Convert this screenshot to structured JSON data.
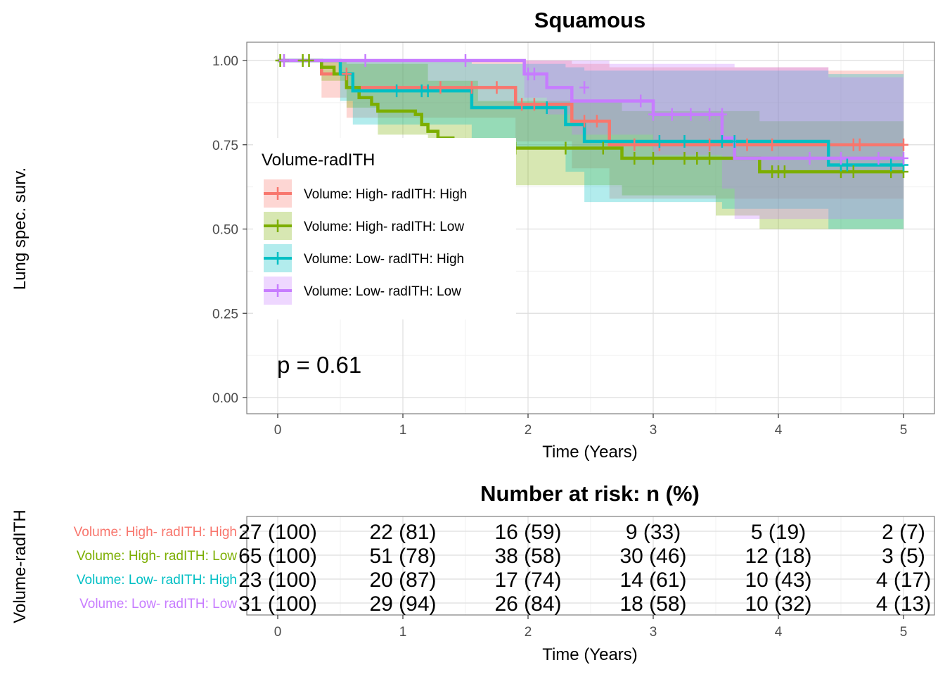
{
  "chart_data": [
    {
      "type": "line",
      "subtype": "kaplan-meier",
      "title": "Squamous",
      "xlabel": "Time (Years)",
      "ylabel": "Lung spec. surv.",
      "xlim": [
        0,
        5
      ],
      "ylim": [
        0,
        1
      ],
      "x_ticks": [
        "0",
        "1",
        "2",
        "3",
        "4",
        "5"
      ],
      "y_ticks": [
        "0.00",
        "0.25",
        "0.50",
        "0.75",
        "1.00"
      ],
      "grid": true,
      "annotation": "p = 0.61",
      "legend": {
        "title": "Volume-radITH",
        "position": "left-middle"
      },
      "series": [
        {
          "name": "Volume: High- radITH: High",
          "color": "#F8766D",
          "steps": [
            [
              0,
              1.0
            ],
            [
              0.35,
              0.96
            ],
            [
              0.55,
              0.92
            ],
            [
              1.9,
              0.87
            ],
            [
              2.35,
              0.82
            ],
            [
              2.65,
              0.75
            ],
            [
              5.0,
              0.75
            ]
          ],
          "ci_lower": [
            [
              0,
              1.0
            ],
            [
              0.35,
              0.89
            ],
            [
              0.55,
              0.83
            ],
            [
              1.9,
              0.76
            ],
            [
              2.35,
              0.68
            ],
            [
              2.65,
              0.59
            ],
            [
              5.0,
              0.59
            ]
          ],
          "ci_upper": [
            [
              0,
              1.0
            ],
            [
              0.35,
              1.0
            ],
            [
              0.55,
              1.0
            ],
            [
              1.9,
              1.0
            ],
            [
              2.35,
              0.99
            ],
            [
              2.65,
              0.98
            ],
            [
              4.4,
              0.97
            ],
            [
              5.0,
              0.97
            ]
          ],
          "censors": [
            [
              0.55,
              0.96
            ],
            [
              1.3,
              0.92
            ],
            [
              1.55,
              0.92
            ],
            [
              1.75,
              0.92
            ],
            [
              1.95,
              0.87
            ],
            [
              2.05,
              0.87
            ],
            [
              2.45,
              0.82
            ],
            [
              2.55,
              0.82
            ],
            [
              2.85,
              0.75
            ],
            [
              3.05,
              0.75
            ],
            [
              3.45,
              0.75
            ],
            [
              3.75,
              0.75
            ],
            [
              3.95,
              0.75
            ],
            [
              4.6,
              0.75
            ],
            [
              4.65,
              0.75
            ],
            [
              5.0,
              0.75
            ]
          ]
        },
        {
          "name": "Volume: High- radITH: Low",
          "color": "#7CAE00",
          "steps": [
            [
              0,
              1.0
            ],
            [
              0.35,
              0.98
            ],
            [
              0.45,
              0.96
            ],
            [
              0.55,
              0.92
            ],
            [
              0.65,
              0.89
            ],
            [
              0.75,
              0.87
            ],
            [
              0.8,
              0.85
            ],
            [
              1.1,
              0.84
            ],
            [
              1.15,
              0.81
            ],
            [
              1.2,
              0.79
            ],
            [
              1.28,
              0.77
            ],
            [
              1.4,
              0.76
            ],
            [
              1.6,
              0.74
            ],
            [
              2.7,
              0.74
            ],
            [
              2.75,
              0.71
            ],
            [
              3.85,
              0.67
            ],
            [
              5.0,
              0.67
            ]
          ],
          "ci_lower": [
            [
              0,
              1.0
            ],
            [
              0.35,
              0.94
            ],
            [
              0.55,
              0.86
            ],
            [
              0.8,
              0.78
            ],
            [
              1.2,
              0.72
            ],
            [
              1.6,
              0.63
            ],
            [
              2.7,
              0.63
            ],
            [
              2.75,
              0.6
            ],
            [
              3.5,
              0.54
            ],
            [
              3.85,
              0.5
            ],
            [
              5.0,
              0.5
            ]
          ],
          "ci_upper": [
            [
              0,
              1.0
            ],
            [
              0.45,
              1.0
            ],
            [
              0.55,
              0.99
            ],
            [
              1.2,
              0.94
            ],
            [
              1.6,
              0.88
            ],
            [
              2.75,
              0.85
            ],
            [
              3.85,
              0.82
            ],
            [
              5.0,
              0.82
            ]
          ],
          "censors": [
            [
              0.02,
              1.0
            ],
            [
              0.05,
              1.0
            ],
            [
              0.2,
              1.0
            ],
            [
              0.25,
              1.0
            ],
            [
              1.7,
              0.74
            ],
            [
              1.9,
              0.74
            ],
            [
              2.3,
              0.74
            ],
            [
              2.6,
              0.74
            ],
            [
              2.85,
              0.71
            ],
            [
              3.0,
              0.71
            ],
            [
              3.25,
              0.71
            ],
            [
              3.35,
              0.71
            ],
            [
              3.45,
              0.71
            ],
            [
              3.95,
              0.67
            ],
            [
              4.0,
              0.67
            ],
            [
              4.05,
              0.67
            ],
            [
              4.5,
              0.67
            ],
            [
              4.6,
              0.67
            ],
            [
              4.9,
              0.67
            ],
            [
              5.0,
              0.67
            ]
          ]
        },
        {
          "name": "Volume: Low- radITH: High",
          "color": "#00BFC4",
          "steps": [
            [
              0,
              1.0
            ],
            [
              0.5,
              0.96
            ],
            [
              0.6,
              0.91
            ],
            [
              1.55,
              0.86
            ],
            [
              2.3,
              0.81
            ],
            [
              2.45,
              0.76
            ],
            [
              4.4,
              0.69
            ],
            [
              5.0,
              0.69
            ]
          ],
          "ci_lower": [
            [
              0,
              1.0
            ],
            [
              0.5,
              0.88
            ],
            [
              0.6,
              0.81
            ],
            [
              1.55,
              0.74
            ],
            [
              2.3,
              0.67
            ],
            [
              2.45,
              0.58
            ],
            [
              3.55,
              0.56
            ],
            [
              4.4,
              0.5
            ],
            [
              5.0,
              0.5
            ]
          ],
          "ci_upper": [
            [
              0,
              1.0
            ],
            [
              0.6,
              1.0
            ],
            [
              1.55,
              0.99
            ],
            [
              2.3,
              0.98
            ],
            [
              2.45,
              0.97
            ],
            [
              4.4,
              0.96
            ],
            [
              5.0,
              0.96
            ]
          ],
          "censors": [
            [
              0.95,
              0.91
            ],
            [
              1.15,
              0.91
            ],
            [
              1.2,
              0.91
            ],
            [
              2.15,
              0.86
            ],
            [
              3.05,
              0.76
            ],
            [
              3.25,
              0.76
            ],
            [
              3.55,
              0.76
            ],
            [
              3.65,
              0.76
            ],
            [
              4.5,
              0.69
            ],
            [
              4.55,
              0.69
            ],
            [
              4.9,
              0.69
            ],
            [
              5.0,
              0.69
            ]
          ]
        },
        {
          "name": "Volume: Low- radITH: Low",
          "color": "#C77CFF",
          "steps": [
            [
              0,
              1.0
            ],
            [
              1.97,
              0.96
            ],
            [
              2.15,
              0.92
            ],
            [
              2.35,
              0.88
            ],
            [
              3.0,
              0.84
            ],
            [
              3.55,
              0.77
            ],
            [
              3.65,
              0.71
            ],
            [
              5.0,
              0.71
            ]
          ],
          "ci_lower": [
            [
              0,
              1.0
            ],
            [
              1.97,
              0.89
            ],
            [
              2.15,
              0.84
            ],
            [
              2.35,
              0.78
            ],
            [
              3.0,
              0.72
            ],
            [
              3.55,
              0.62
            ],
            [
              3.65,
              0.53
            ],
            [
              3.85,
              0.53
            ],
            [
              4.4,
              0.53
            ],
            [
              5.0,
              0.53
            ]
          ],
          "ci_upper": [
            [
              0,
              1.0
            ],
            [
              2.35,
              1.0
            ],
            [
              2.65,
              0.99
            ],
            [
              3.55,
              0.99
            ],
            [
              3.65,
              0.98
            ],
            [
              4.4,
              0.95
            ],
            [
              5.0,
              0.95
            ]
          ],
          "censors": [
            [
              0.05,
              1.0
            ],
            [
              0.7,
              1.0
            ],
            [
              1.5,
              1.0
            ],
            [
              2.0,
              0.96
            ],
            [
              2.05,
              0.96
            ],
            [
              2.45,
              0.92
            ],
            [
              2.9,
              0.88
            ],
            [
              3.0,
              0.84
            ],
            [
              3.15,
              0.84
            ],
            [
              3.3,
              0.84
            ],
            [
              3.45,
              0.84
            ],
            [
              3.55,
              0.84
            ],
            [
              4.25,
              0.71
            ],
            [
              4.5,
              0.71
            ],
            [
              4.8,
              0.71
            ],
            [
              5.0,
              0.71
            ]
          ]
        }
      ]
    },
    {
      "type": "table",
      "title": "Number at risk: n (%)",
      "xlabel": "Time (Years)",
      "ylabel": "Volume-radITH",
      "x_ticks": [
        "0",
        "1",
        "2",
        "3",
        "4",
        "5"
      ],
      "xlim": [
        0,
        5
      ],
      "rows": [
        {
          "name": "Volume: High- radITH: High",
          "color": "#F8766D",
          "cells": [
            "27 (100)",
            "22 (81)",
            "16 (59)",
            "9 (33)",
            "5 (19)",
            "2 (7)"
          ]
        },
        {
          "name": "Volume: High- radITH: Low",
          "color": "#7CAE00",
          "cells": [
            "65 (100)",
            "51 (78)",
            "38 (58)",
            "30 (46)",
            "12 (18)",
            "3 (5)"
          ]
        },
        {
          "name": "Volume: Low- radITH: High",
          "color": "#00BFC4",
          "cells": [
            "23 (100)",
            "20 (87)",
            "17 (74)",
            "14 (61)",
            "10 (43)",
            "4 (17)"
          ]
        },
        {
          "name": "Volume: Low- radITH: Low",
          "color": "#C77CFF",
          "cells": [
            "31 (100)",
            "29 (94)",
            "26 (84)",
            "18 (58)",
            "10 (32)",
            "4 (13)"
          ]
        }
      ]
    }
  ]
}
